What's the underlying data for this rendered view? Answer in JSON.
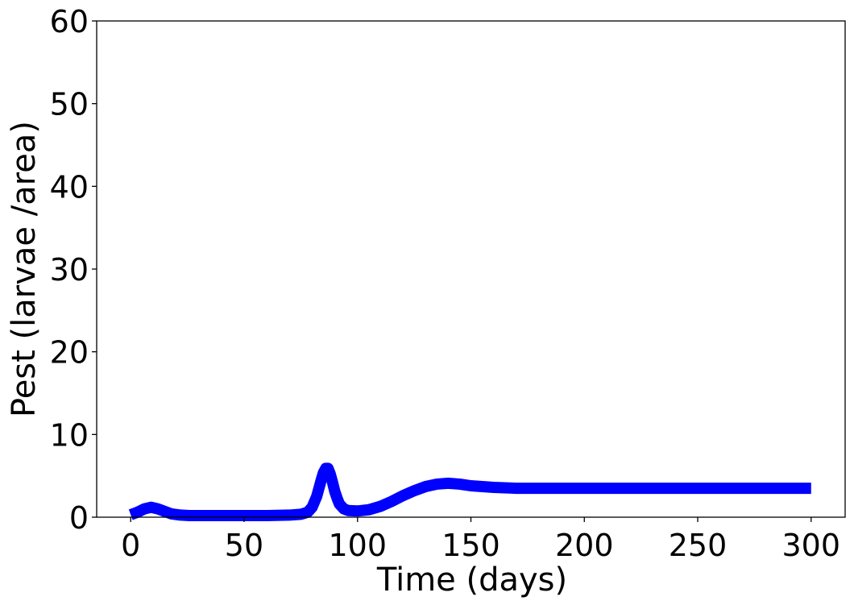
{
  "chart_data": {
    "type": "line",
    "title": "",
    "xlabel": "Time (days)",
    "ylabel": "Pest (larvae /area)",
    "xlim": [
      -15,
      315
    ],
    "ylim": [
      0,
      60
    ],
    "xticks": [
      0,
      50,
      100,
      150,
      200,
      250,
      300
    ],
    "yticks": [
      0,
      10,
      20,
      30,
      40,
      50,
      60
    ],
    "grid": false,
    "legend": "none",
    "series": [
      {
        "color": "#0000ff",
        "x": [
          0,
          3,
          6,
          9,
          12,
          15,
          18,
          22,
          26,
          30,
          40,
          50,
          60,
          70,
          75,
          78,
          80,
          82,
          84,
          85,
          86,
          87,
          88,
          89,
          90,
          91,
          92,
          94,
          96,
          100,
          105,
          110,
          115,
          120,
          125,
          130,
          135,
          140,
          145,
          150,
          160,
          170,
          180,
          200,
          250,
          300
        ],
        "y": [
          0.3,
          0.6,
          1.0,
          1.2,
          1.0,
          0.7,
          0.4,
          0.25,
          0.2,
          0.2,
          0.2,
          0.2,
          0.2,
          0.25,
          0.35,
          0.6,
          1.2,
          2.5,
          4.5,
          5.4,
          5.9,
          5.9,
          5.2,
          4.2,
          3.1,
          2.3,
          1.6,
          1.0,
          0.8,
          0.75,
          0.9,
          1.3,
          1.9,
          2.6,
          3.2,
          3.7,
          4.0,
          4.1,
          4.0,
          3.8,
          3.6,
          3.5,
          3.5,
          3.5,
          3.5,
          3.5
        ]
      }
    ]
  }
}
